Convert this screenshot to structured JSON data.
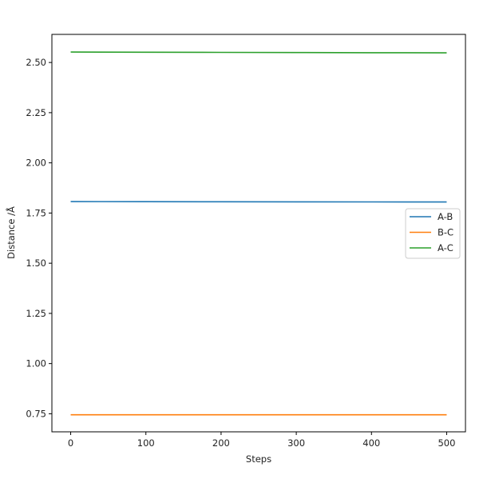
{
  "chart_data": {
    "type": "line",
    "title": "",
    "xlabel": "Steps",
    "ylabel": "Distance /Å",
    "xlim": [
      -25,
      525
    ],
    "ylim": [
      0.66,
      2.64
    ],
    "xticks": [
      0,
      100,
      200,
      300,
      400,
      500
    ],
    "xtick_labels": [
      "0",
      "100",
      "200",
      "300",
      "400",
      "500"
    ],
    "yticks": [
      0.75,
      1.0,
      1.25,
      1.5,
      1.75,
      2.0,
      2.25,
      2.5
    ],
    "ytick_labels": [
      "0.75",
      "1.00",
      "1.25",
      "1.50",
      "1.75",
      "2.00",
      "2.25",
      "2.50"
    ],
    "grid": false,
    "legend_position": "center-right",
    "series": [
      {
        "name": "A-B",
        "color": "#1f77b4",
        "x": [
          0,
          100,
          200,
          300,
          400,
          500
        ],
        "y": [
          1.807,
          1.8066,
          1.8062,
          1.8058,
          1.8054,
          1.805
        ]
      },
      {
        "name": "B-C",
        "color": "#ff7f0e",
        "x": [
          0,
          100,
          200,
          300,
          400,
          500
        ],
        "y": [
          0.745,
          0.745,
          0.745,
          0.745,
          0.745,
          0.745
        ]
      },
      {
        "name": "A-C",
        "color": "#2ca02c",
        "x": [
          0,
          100,
          200,
          300,
          400,
          500
        ],
        "y": [
          2.552,
          2.5512,
          2.5504,
          2.5496,
          2.5488,
          2.548
        ]
      }
    ]
  }
}
